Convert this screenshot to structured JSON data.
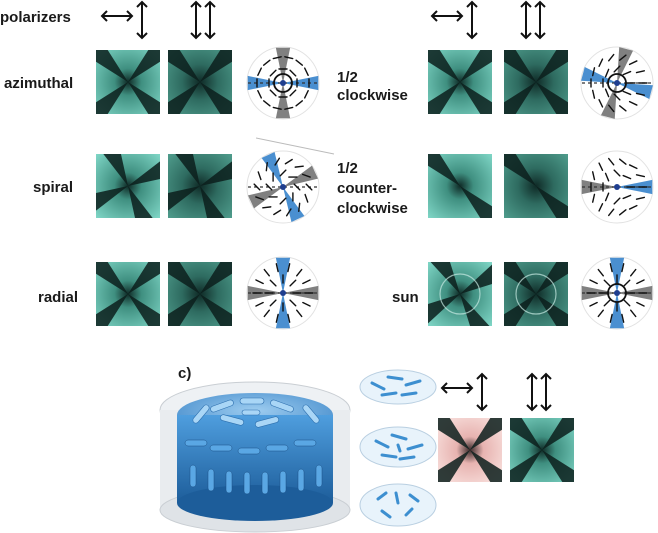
{
  "labels": {
    "polarizers": "polarizers",
    "azimuthal": "azimuthal",
    "spiral": "spiral",
    "radial": "radial",
    "half_cw_1": "1/2",
    "half_cw_2": "clockwise",
    "half_ccw_1": "1/2",
    "half_ccw_2": "counter-",
    "half_ccw_3": "clockwise",
    "sun": "sun",
    "panel_c": "c)"
  },
  "colors": {
    "teal_light": "#7fd6c6",
    "teal_dark": "#1f4f48",
    "blue_wedge": "#4a8fd0",
    "gray_wedge": "#777777",
    "pink": "#f2c3c3",
    "lc_blue": "#3d8fd0"
  },
  "icons": {
    "crossed_polarizers": "double-arrow-crossed-icon",
    "parallel_polarizers": "double-arrow-parallel-icon"
  }
}
